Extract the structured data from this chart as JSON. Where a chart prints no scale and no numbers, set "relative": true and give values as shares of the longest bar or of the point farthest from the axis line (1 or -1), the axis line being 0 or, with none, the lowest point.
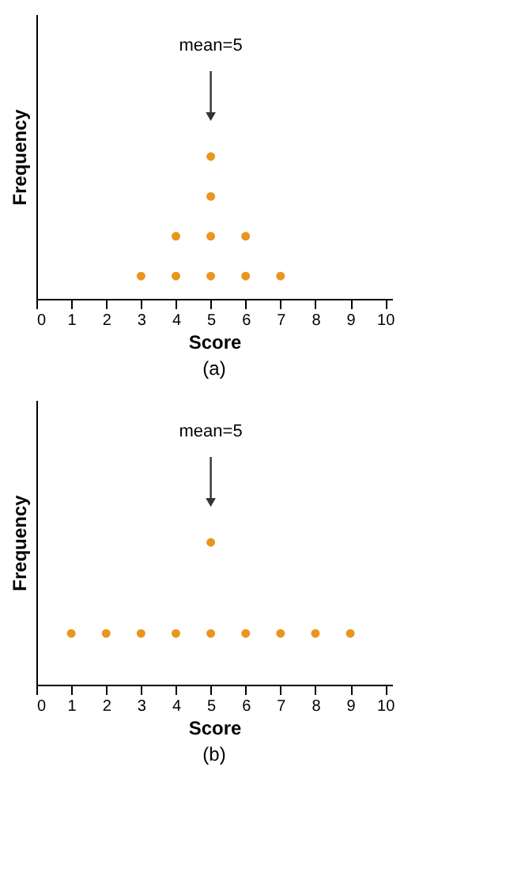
{
  "chart_data": [
    {
      "type": "scatter",
      "relative": true,
      "xlabel": "Score",
      "ylabel": "Frequency",
      "xlim": [
        0,
        10.2
      ],
      "xticks": [
        0,
        1,
        2,
        3,
        4,
        5,
        6,
        7,
        8,
        9,
        10
      ],
      "tick_labels": "x",
      "grid": false,
      "marker": "circle",
      "annotations": [
        "(a)"
      ],
      "ref_lines": [
        {
          "axis": "x",
          "value": 5,
          "label": "mean=5",
          "color": "#333333"
        }
      ],
      "series": [
        {
          "color": "#e8961e",
          "x": [
            3,
            4,
            4,
            5,
            5,
            5,
            5,
            6,
            6,
            7
          ],
          "values": [
            0.16,
            0.16,
            0.44,
            0.16,
            0.44,
            0.72,
            1,
            0.16,
            0.44,
            0.16
          ]
        }
      ]
    },
    {
      "type": "scatter",
      "relative": true,
      "xlabel": "Score",
      "ylabel": "Frequency",
      "xlim": [
        0,
        10.2
      ],
      "xticks": [
        0,
        1,
        2,
        3,
        4,
        5,
        6,
        7,
        8,
        9,
        10
      ],
      "tick_labels": "x",
      "grid": false,
      "marker": "circle",
      "annotations": [
        "(b)"
      ],
      "ref_lines": [
        {
          "axis": "x",
          "value": 5,
          "label": "mean=5",
          "color": "#333333"
        }
      ],
      "series": [
        {
          "color": "#e8961e",
          "x": [
            1,
            2,
            3,
            4,
            5,
            5,
            6,
            7,
            8,
            9
          ],
          "values": [
            0.36,
            0.36,
            0.36,
            0.36,
            0.36,
            1,
            0.36,
            0.36,
            0.36,
            0.36
          ]
        }
      ]
    }
  ]
}
